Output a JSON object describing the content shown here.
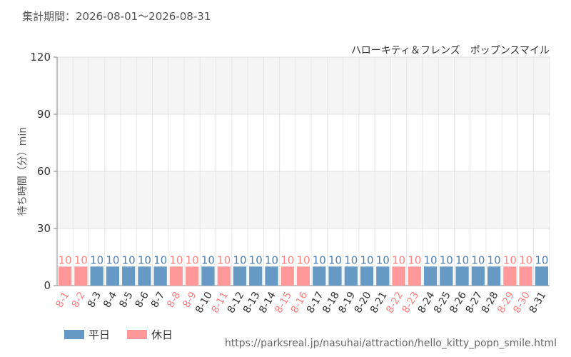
{
  "period_label": "集計期間：2026-08-01～2026-08-31",
  "attraction_name": "ハローキティ＆フレンズ　ポップンスマイル",
  "source_url": "https://parksreal.jp/nasuhai/attraction/hello_kitty_popn_smile.html",
  "legend": {
    "weekday_label": "平日",
    "holiday_label": "休日"
  },
  "colors": {
    "weekday": "#6699c4",
    "holiday": "#ff9999",
    "weekday_text": "#4d7fb0",
    "holiday_text": "#ff8080"
  },
  "chart_data": {
    "type": "bar",
    "ylabel": "待ち時間（分）min",
    "ylim": [
      0,
      120
    ],
    "yticks": [
      0,
      30,
      60,
      90,
      120
    ],
    "grid": true,
    "legend_position": "bottom-left",
    "categories": [
      "8-1",
      "8-2",
      "8-3",
      "8-4",
      "8-5",
      "8-6",
      "8-7",
      "8-8",
      "8-9",
      "8-10",
      "8-11",
      "8-12",
      "8-13",
      "8-14",
      "8-15",
      "8-16",
      "8-17",
      "8-18",
      "8-19",
      "8-20",
      "8-21",
      "8-22",
      "8-23",
      "8-24",
      "8-25",
      "8-26",
      "8-27",
      "8-28",
      "8-29",
      "8-30",
      "8-31"
    ],
    "values": [
      10,
      10,
      10,
      10,
      10,
      10,
      10,
      10,
      10,
      10,
      10,
      10,
      10,
      10,
      10,
      10,
      10,
      10,
      10,
      10,
      10,
      10,
      10,
      10,
      10,
      10,
      10,
      10,
      10,
      10,
      10
    ],
    "day_type": [
      "holiday",
      "holiday",
      "weekday",
      "weekday",
      "weekday",
      "weekday",
      "weekday",
      "holiday",
      "holiday",
      "weekday",
      "holiday",
      "weekday",
      "weekday",
      "weekday",
      "holiday",
      "holiday",
      "weekday",
      "weekday",
      "weekday",
      "weekday",
      "weekday",
      "holiday",
      "holiday",
      "weekday",
      "weekday",
      "weekday",
      "weekday",
      "weekday",
      "holiday",
      "holiday",
      "weekday"
    ]
  }
}
